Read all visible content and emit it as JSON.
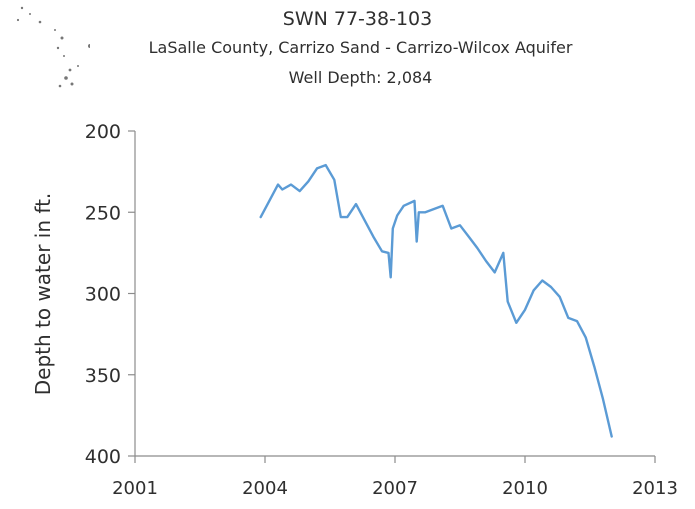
{
  "header": {
    "title": "SWN 77-38-103",
    "subtitle": "LaSalle County, Carrizo Sand - Carrizo-Wilcox Aquifer",
    "detail": "Well Depth: 2,084"
  },
  "chart_data": {
    "type": "line",
    "title": "SWN 77-38-103",
    "xlabel": "",
    "ylabel": "Depth to water in ft.",
    "xlim": [
      2001,
      2013
    ],
    "ylim": [
      200,
      400
    ],
    "y_inverted": true,
    "x_ticks": [
      2001,
      2004,
      2007,
      2010,
      2013
    ],
    "y_ticks": [
      200,
      250,
      300,
      350,
      400
    ],
    "x_tick_labels": [
      "2001",
      "2004",
      "2007",
      "2010",
      "2013"
    ],
    "y_tick_labels": [
      "200",
      "250",
      "300",
      "350",
      "400"
    ],
    "grid": false,
    "legend": "none",
    "line_color": "#5b9bd5",
    "series": [
      {
        "x": [
          2003.9,
          2004.1,
          2004.3,
          2004.4,
          2004.6,
          2004.8,
          2005.0,
          2005.2,
          2005.4,
          2005.6,
          2005.75,
          2005.9,
          2006.1,
          2006.3,
          2006.5,
          2006.7,
          2006.85,
          2006.9,
          2006.95,
          2007.05,
          2007.2,
          2007.45,
          2007.5,
          2007.55,
          2007.7,
          2007.9,
          2008.1,
          2008.3,
          2008.5,
          2008.7,
          2008.9,
          2009.1,
          2009.3,
          2009.5,
          2009.55,
          2009.6,
          2009.8,
          2010.0,
          2010.2,
          2010.4,
          2010.6,
          2010.8,
          2011.0,
          2011.2,
          2011.4,
          2011.6,
          2011.8,
          2012.0
        ],
        "y": [
          253,
          243,
          233,
          236,
          233,
          237,
          231,
          223,
          221,
          230,
          253,
          253,
          245,
          255,
          265,
          274,
          275,
          290,
          260,
          252,
          246,
          243,
          268,
          250,
          250,
          248,
          246,
          260,
          258,
          265,
          272,
          280,
          287,
          275,
          290,
          305,
          318,
          310,
          298,
          292,
          296,
          302,
          315,
          317,
          327,
          345,
          365,
          388
        ]
      }
    ]
  }
}
